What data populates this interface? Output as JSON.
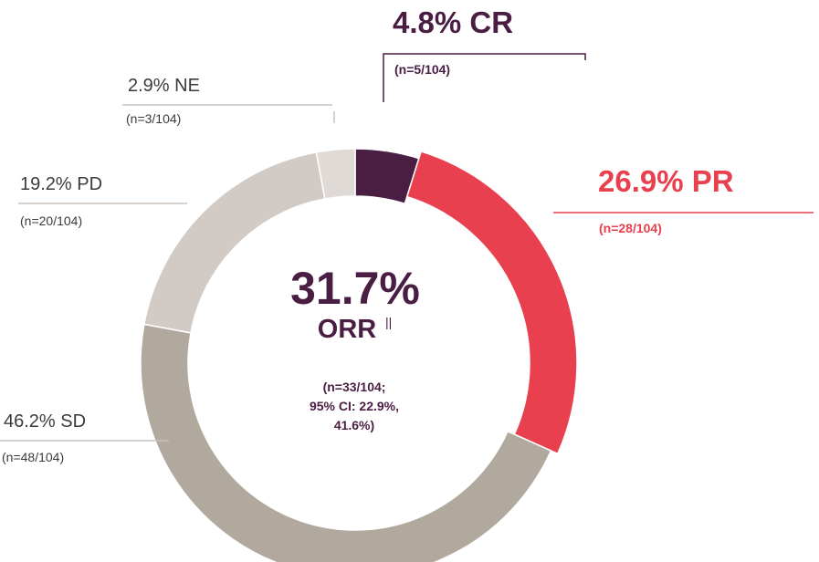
{
  "chart_data": {
    "type": "pie",
    "variant": "donut",
    "total": 104,
    "slices": [
      {
        "key": "CR",
        "label": "4.8% CR",
        "value": 4.8,
        "n_text": "(n=5/104)",
        "color": "#4a1d43"
      },
      {
        "key": "PR",
        "label": "26.9% PR",
        "value": 26.9,
        "n_text": "(n=28/104)",
        "color": "#e8404e"
      },
      {
        "key": "SD",
        "label": "46.2% SD",
        "value": 46.2,
        "n_text": "(n=48/104)",
        "color": "#b1a89e"
      },
      {
        "key": "PD",
        "label": "19.2% PD",
        "value": 19.2,
        "n_text": "(n=20/104)",
        "color": "#d2cbc5"
      },
      {
        "key": "NE",
        "label": "2.9% NE",
        "value": 2.9,
        "n_text": "(n=3/104)",
        "color": "#e0dad6"
      }
    ],
    "center": {
      "value": "31.7%",
      "label": "ORR",
      "superscript": "||",
      "detail_lines": [
        "(n=33/104;",
        "95% CI: 22.9%,",
        "41.6%)"
      ]
    }
  },
  "colors": {
    "cr": "#4a1d43",
    "pr": "#e8404e",
    "dark_text": "#3a1733",
    "grey_text": "#3b3b3b",
    "leader_grey": "#c9c2bb"
  }
}
